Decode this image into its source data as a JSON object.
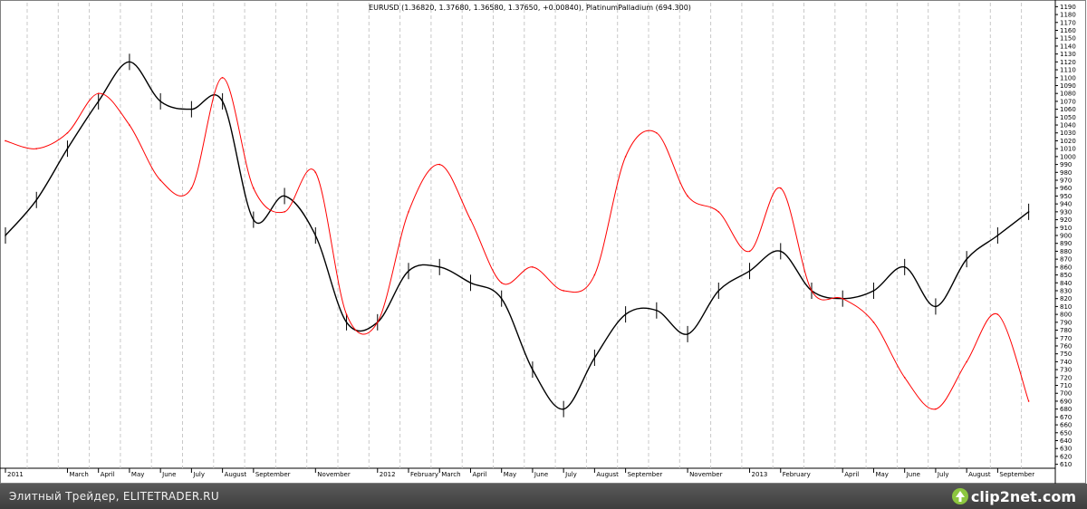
{
  "chart_data": {
    "type": "line",
    "title": "EURUSD (1.36820, 1.37680, 1.36580, 1.37650, +0.00840), PlatinumPalladium (694.300)",
    "xlabel": "",
    "ylabel": "",
    "ylim": [
      605,
      1195
    ],
    "y_ticks": [
      610,
      620,
      630,
      640,
      650,
      660,
      670,
      680,
      690,
      700,
      710,
      720,
      730,
      740,
      750,
      760,
      770,
      780,
      790,
      800,
      810,
      820,
      830,
      840,
      850,
      860,
      870,
      880,
      890,
      900,
      910,
      920,
      930,
      940,
      950,
      960,
      970,
      980,
      990,
      1000,
      1010,
      1020,
      1030,
      1040,
      1050,
      1060,
      1070,
      1080,
      1090,
      1100,
      1110,
      1120,
      1130,
      1140,
      1150,
      1160,
      1170,
      1180,
      1190
    ],
    "y_axis_side": "right",
    "grid": "vertical-dashed",
    "x_ticks": [
      {
        "label": "2011",
        "x": "2011-01"
      },
      {
        "label": "March",
        "x": "2011-03"
      },
      {
        "label": "April",
        "x": "2011-04"
      },
      {
        "label": "May",
        "x": "2011-05"
      },
      {
        "label": "June",
        "x": "2011-06"
      },
      {
        "label": "July",
        "x": "2011-07"
      },
      {
        "label": "August",
        "x": "2011-08"
      },
      {
        "label": "September",
        "x": "2011-09"
      },
      {
        "label": "November",
        "x": "2011-11"
      },
      {
        "label": "2012",
        "x": "2012-01"
      },
      {
        "label": "February",
        "x": "2012-02"
      },
      {
        "label": "March",
        "x": "2012-03"
      },
      {
        "label": "April",
        "x": "2012-04"
      },
      {
        "label": "May",
        "x": "2012-05"
      },
      {
        "label": "June",
        "x": "2012-06"
      },
      {
        "label": "July",
        "x": "2012-07"
      },
      {
        "label": "August",
        "x": "2012-08"
      },
      {
        "label": "September",
        "x": "2012-09"
      },
      {
        "label": "November",
        "x": "2012-11"
      },
      {
        "label": "2013",
        "x": "2013-01"
      },
      {
        "label": "February",
        "x": "2013-02"
      },
      {
        "label": "April",
        "x": "2013-04"
      },
      {
        "label": "May",
        "x": "2013-05"
      },
      {
        "label": "June",
        "x": "2013-06"
      },
      {
        "label": "July",
        "x": "2013-07"
      },
      {
        "label": "August",
        "x": "2013-08"
      },
      {
        "label": "September",
        "x": "2013-09"
      }
    ],
    "series": [
      {
        "name": "EURUSD",
        "color": "#000000",
        "style": "bars",
        "x": [
          "2011-01",
          "2011-02",
          "2011-03",
          "2011-04",
          "2011-05",
          "2011-06",
          "2011-07",
          "2011-08",
          "2011-09",
          "2011-10",
          "2011-11",
          "2011-12",
          "2012-01",
          "2012-02",
          "2012-03",
          "2012-04",
          "2012-05",
          "2012-06",
          "2012-07",
          "2012-08",
          "2012-09",
          "2012-10",
          "2012-11",
          "2012-12",
          "2013-01",
          "2013-02",
          "2013-03",
          "2013-04",
          "2013-05",
          "2013-06",
          "2013-07",
          "2013-08",
          "2013-09",
          "2013-10"
        ],
        "values": [
          900,
          945,
          1010,
          1070,
          1120,
          1070,
          1060,
          1070,
          920,
          950,
          900,
          790,
          790,
          855,
          860,
          840,
          820,
          730,
          680,
          745,
          800,
          805,
          775,
          830,
          855,
          880,
          830,
          820,
          830,
          860,
          810,
          870,
          900,
          930
        ]
      },
      {
        "name": "PlatinumPalladium",
        "color": "#ff0000",
        "style": "line",
        "x": [
          "2011-01",
          "2011-02",
          "2011-03",
          "2011-04",
          "2011-05",
          "2011-06",
          "2011-07",
          "2011-08",
          "2011-09",
          "2011-10",
          "2011-11",
          "2011-12",
          "2012-01",
          "2012-02",
          "2012-03",
          "2012-04",
          "2012-05",
          "2012-06",
          "2012-07",
          "2012-08",
          "2012-09",
          "2012-10",
          "2012-11",
          "2012-12",
          "2013-01",
          "2013-02",
          "2013-03",
          "2013-04",
          "2013-05",
          "2013-06",
          "2013-07",
          "2013-08",
          "2013-09",
          "2013-10"
        ],
        "values": [
          1020,
          1010,
          1030,
          1080,
          1040,
          970,
          960,
          1100,
          960,
          930,
          980,
          800,
          790,
          930,
          990,
          920,
          840,
          860,
          830,
          850,
          1000,
          1030,
          950,
          930,
          880,
          960,
          830,
          820,
          790,
          720,
          680,
          740,
          800,
          690
        ]
      }
    ]
  },
  "footer": {
    "text": "Элитный Трейдер, ELITETRADER.RU",
    "brand": "clip2net.com"
  },
  "colors": {
    "eurusd": "#000000",
    "platinum_palladium": "#ff0000",
    "footer_bg": "#4a4a4a",
    "grid": "#c8c8c8"
  }
}
